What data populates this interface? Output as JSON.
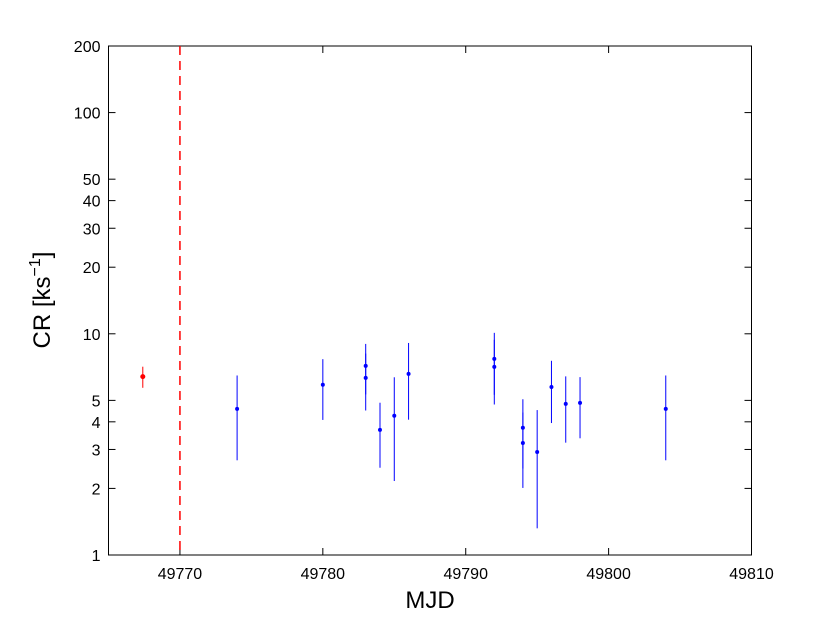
{
  "chart_data": {
    "type": "scatter",
    "x_label": "MJD",
    "y_label": {
      "text": "CR [ks",
      "superscript": "−1",
      "suffix": "]"
    },
    "xlim": [
      49765,
      49810
    ],
    "xticks": [
      49770,
      49780,
      49790,
      49800,
      49810
    ],
    "ylim": [
      1,
      200
    ],
    "yticks": [
      1,
      2,
      3,
      4,
      5,
      10,
      20,
      30,
      40,
      50,
      100,
      200
    ],
    "log_y": true,
    "vline": {
      "x": 49770,
      "color": "#ff0000"
    },
    "series": [
      {
        "color": "#ff0000",
        "x": [
          49767.4
        ],
        "values": [
          6.4
        ],
        "errors": [
          0.7
        ]
      },
      {
        "color": "#0000ff",
        "x": [
          49774,
          49780,
          49783,
          49783,
          49784,
          49785,
          49786,
          49792,
          49792,
          49794,
          49794,
          49795,
          49796,
          49797,
          49798,
          49804
        ],
        "values": [
          4.58,
          5.88,
          7.16,
          6.32,
          3.68,
          4.26,
          6.59,
          7.7,
          7.09,
          3.76,
          3.21,
          2.92,
          5.75,
          4.82,
          4.87,
          4.58
        ],
        "errors": [
          1.9,
          1.8,
          1.84,
          1.82,
          1.2,
          2.1,
          2.5,
          2.4,
          2.3,
          1.3,
          1.2,
          1.6,
          1.8,
          1.6,
          1.5,
          1.9
        ]
      }
    ]
  }
}
